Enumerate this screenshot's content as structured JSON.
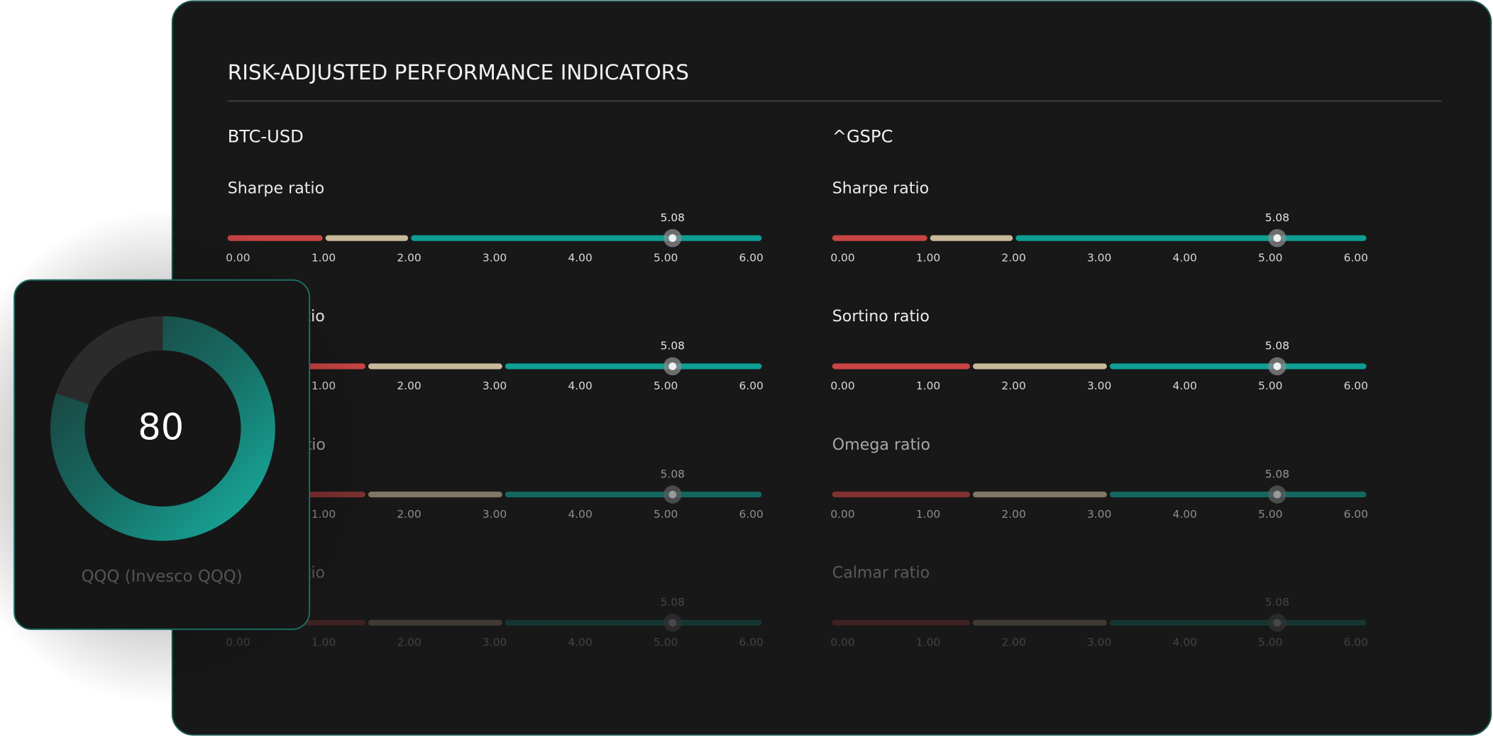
{
  "header": {
    "title": "RISK-ADJUSTED PERFORMANCE INDICATORS"
  },
  "scale": {
    "ticks": [
      {
        "value": 0,
        "label": "0.00"
      },
      {
        "value": 1,
        "label": "1.00"
      },
      {
        "value": 2,
        "label": "2.00"
      },
      {
        "value": 3,
        "label": "3.00"
      },
      {
        "value": 4,
        "label": "4.00"
      },
      {
        "value": 5,
        "label": "5.00"
      },
      {
        "value": 6,
        "label": "6.00"
      }
    ]
  },
  "columns": [
    {
      "name": "BTC-USD",
      "indicators": [
        {
          "label": "Sharpe ratio",
          "value": 5.08,
          "bands": [
            1,
            2
          ]
        },
        {
          "label": "Sortino ratio",
          "value": 5.08,
          "bands": [
            1.5,
            3.1
          ]
        },
        {
          "label": "Omega ratio",
          "value": 5.08,
          "bands": [
            1.5,
            3.1
          ]
        },
        {
          "label": "Calmar ratio",
          "value": 5.08,
          "bands": [
            1.5,
            3.1
          ]
        }
      ]
    },
    {
      "name": "^GSPC",
      "indicators": [
        {
          "label": "Sharpe ratio",
          "value": 5.08,
          "bands": [
            1,
            2
          ]
        },
        {
          "label": "Sortino ratio",
          "value": 5.08,
          "bands": [
            1.5,
            3.1
          ]
        },
        {
          "label": "Omega ratio",
          "value": 5.08,
          "bands": [
            1.5,
            3.1
          ]
        },
        {
          "label": "Calmar ratio",
          "value": 5.08,
          "bands": [
            1.5,
            3.1
          ]
        }
      ]
    }
  ],
  "card": {
    "score": 80,
    "label": "QQQ (Invesco QQQ)"
  }
}
